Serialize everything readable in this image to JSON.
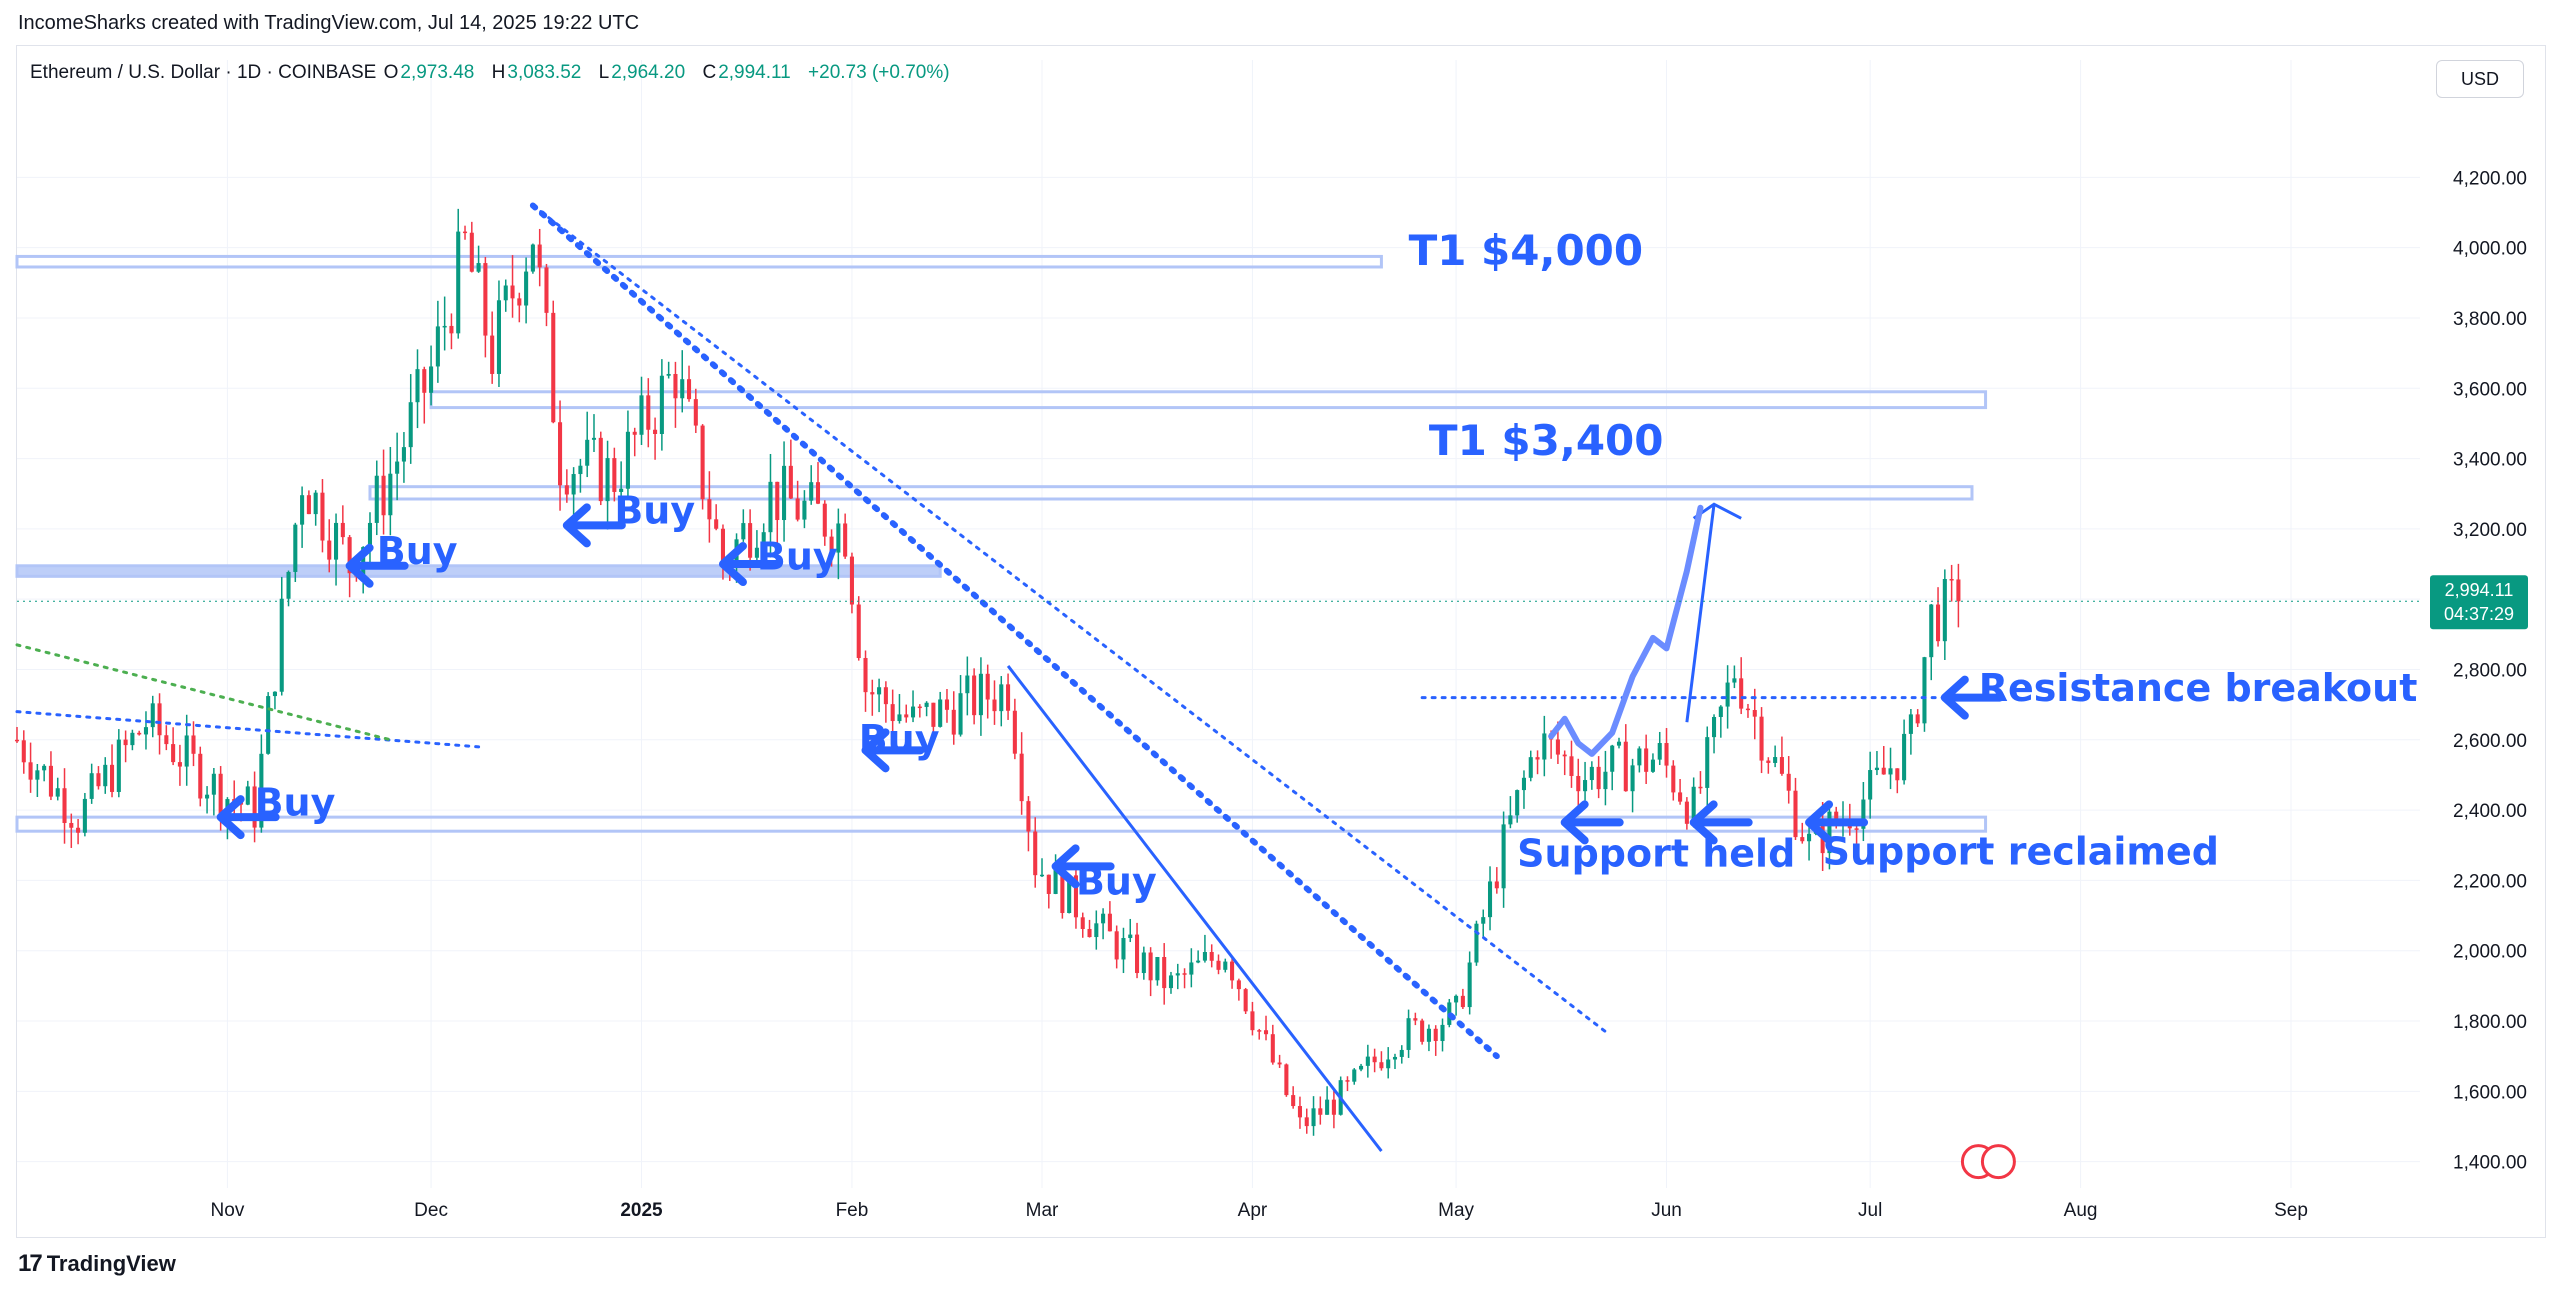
{
  "header": {
    "credit": "IncomeSharks created with TradingView.com, Jul 14, 2025 19:22 UTC"
  },
  "symbol": {
    "name": "Ethereum / U.S. Dollar · 1D · COINBASE",
    "o_key": "O",
    "o_val": "2,973.48",
    "h_key": "H",
    "h_val": "3,083.52",
    "l_key": "L",
    "l_val": "2,964.20",
    "c_key": "C",
    "c_val": "2,994.11",
    "change": "+20.73 (+0.70%)"
  },
  "currency": "USD",
  "price_label": {
    "price": "2,994.11",
    "countdown": "04:37:29"
  },
  "footer": {
    "brand": "TradingView"
  },
  "colors": {
    "up": "#089981",
    "down": "#f23645",
    "annotation": "#2962ff",
    "zone_fill": "#ffffff",
    "zone_border": "#b2c5f7",
    "price_tag": "#089981"
  },
  "chart_data": {
    "type": "candlestick",
    "symbol": "ETHUSD",
    "timeframe": "1D",
    "x_axis": {
      "labels": [
        "Nov",
        "Dec",
        "2025",
        "Feb",
        "Mar",
        "Apr",
        "May",
        "Jun",
        "Jul",
        "Aug",
        "Sep"
      ],
      "dates": [
        "2024-11-01",
        "2024-12-01",
        "2025-01-01",
        "2025-02-01",
        "2025-03-01",
        "2025-04-01",
        "2025-05-01",
        "2025-06-01",
        "2025-07-01",
        "2025-08-01",
        "2025-09-01"
      ],
      "range": [
        "2024-10-01",
        "2025-09-20"
      ]
    },
    "y_axis": {
      "ticks": [
        1400,
        1600,
        1800,
        2000,
        2200,
        2400,
        2600,
        2800,
        3000,
        3200,
        3400,
        3600,
        3800,
        4000,
        4200
      ],
      "tick_labels": [
        "1,400.00",
        "1,600.00",
        "1,800.00",
        "2,000.00",
        "2,200.00",
        "2,400.00",
        "2,600.00",
        "2,800.00",
        "3,000.00",
        "3,200.00",
        "3,400.00",
        "3,600.00",
        "3,800.00",
        "4,000.00",
        "4,200.00"
      ],
      "range": [
        1325,
        4420
      ]
    },
    "grid": true,
    "last_price": 2994.11,
    "price_path": [
      [
        "2024-10-01",
        2600
      ],
      [
        "2024-10-10",
        2380
      ],
      [
        "2024-10-20",
        2650
      ],
      [
        "2024-10-31",
        2450
      ],
      [
        "2024-11-05",
        2400
      ],
      [
        "2024-11-12",
        3350
      ],
      [
        "2024-11-19",
        3100
      ],
      [
        "2024-11-26",
        3400
      ],
      [
        "2024-12-01",
        3650
      ],
      [
        "2024-12-06",
        4000
      ],
      [
        "2024-12-10",
        3700
      ],
      [
        "2024-12-16",
        4050
      ],
      [
        "2024-12-20",
        3400
      ],
      [
        "2024-12-28",
        3350
      ],
      [
        "2025-01-06",
        3650
      ],
      [
        "2025-01-13",
        3100
      ],
      [
        "2025-01-20",
        3300
      ],
      [
        "2025-01-31",
        3200
      ],
      [
        "2025-02-03",
        2750
      ],
      [
        "2025-02-10",
        2650
      ],
      [
        "2025-02-24",
        2750
      ],
      [
        "2025-02-28",
        2250
      ],
      [
        "2025-03-10",
        2050
      ],
      [
        "2025-03-20",
        1900
      ],
      [
        "2025-03-28",
        2000
      ],
      [
        "2025-04-08",
        1500
      ],
      [
        "2025-04-15",
        1600
      ],
      [
        "2025-04-22",
        1750
      ],
      [
        "2025-05-01",
        1820
      ],
      [
        "2025-05-08",
        2300
      ],
      [
        "2025-05-13",
        2600
      ],
      [
        "2025-05-20",
        2500
      ],
      [
        "2025-05-31",
        2550
      ],
      [
        "2025-06-05",
        2400
      ],
      [
        "2025-06-11",
        2800
      ],
      [
        "2025-06-22",
        2300
      ],
      [
        "2025-07-01",
        2450
      ],
      [
        "2025-07-07",
        2600
      ],
      [
        "2025-07-10",
        2950
      ],
      [
        "2025-07-14",
        2994
      ]
    ],
    "annotations": {
      "zones": [
        {
          "from": 3945,
          "to": 3975,
          "start": "2024-10-01",
          "end": "2025-04-20"
        },
        {
          "from": 3545,
          "to": 3590,
          "start": "2024-12-01",
          "end": "2025-07-18"
        },
        {
          "from": 3285,
          "to": 3320,
          "start": "2024-11-22",
          "end": "2025-07-16"
        },
        {
          "from": 3065,
          "to": 3095,
          "start": "2024-10-01",
          "end": "2025-02-14",
          "filled": true
        },
        {
          "from": 2340,
          "to": 2380,
          "start": "2024-10-01",
          "end": "2025-07-18"
        }
      ],
      "labels": [
        {
          "text": "T1 $4,000",
          "date": "2025-04-24",
          "price": 3950
        },
        {
          "text": "T1 $3,400",
          "date": "2025-04-27",
          "price": 3410
        },
        {
          "text": "Buy",
          "date": "2024-11-23",
          "price": 3100
        },
        {
          "text": "Buy",
          "date": "2024-12-28",
          "price": 3215
        },
        {
          "text": "Buy",
          "date": "2025-01-18",
          "price": 3085
        },
        {
          "text": "Buy",
          "date": "2025-02-02",
          "price": 2565
        },
        {
          "text": "Buy",
          "date": "2024-11-05",
          "price": 2385
        },
        {
          "text": "Buy",
          "date": "2025-03-06",
          "price": 2160
        },
        {
          "text": "Support held",
          "date": "2025-05-10",
          "price": 2240
        },
        {
          "text": "Support reclaimed",
          "date": "2025-06-24",
          "price": 2245
        },
        {
          "text": "Resistance breakout",
          "date": "2025-07-17",
          "price": 2710
        }
      ]
    }
  }
}
